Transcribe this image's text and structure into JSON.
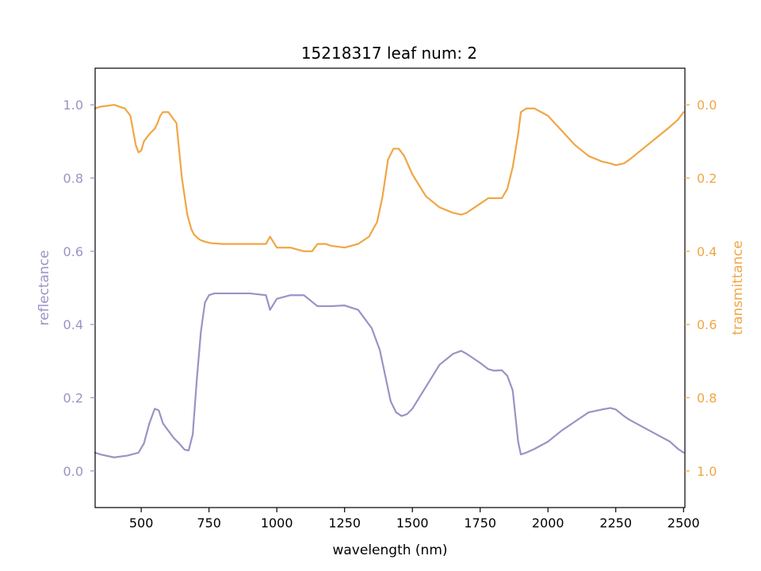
{
  "chart_data": {
    "type": "line",
    "title": "15218317 leaf num: 2",
    "xlabel": "wavelength (nm)",
    "ylabel_left": "reflectance",
    "ylabel_right": "transmittance",
    "xlim": [
      330,
      2505
    ],
    "ylim_left": [
      -0.1,
      1.1
    ],
    "ylim_right": [
      1.1,
      -0.1
    ],
    "right_axis_inverted": true,
    "x_ticks": [
      500,
      750,
      1000,
      1250,
      1500,
      1750,
      2000,
      2250,
      2500
    ],
    "x_tick_labels": [
      "500",
      "750",
      "1000",
      "1250",
      "1500",
      "1750",
      "2000",
      "2250",
      "2500"
    ],
    "y_left_ticks": [
      0.0,
      0.2,
      0.4,
      0.6,
      0.8,
      1.0
    ],
    "y_left_tick_labels": [
      "0.0",
      "0.2",
      "0.4",
      "0.6",
      "0.8",
      "1.0"
    ],
    "y_right_ticks": [
      0.0,
      0.2,
      0.4,
      0.6,
      0.8,
      1.0
    ],
    "y_right_tick_labels": [
      "0.0",
      "0.2",
      "0.4",
      "0.6",
      "0.8",
      "1.0"
    ],
    "grid": false,
    "legend": "none",
    "colors": {
      "reflectance": "#9894c5",
      "transmittance": "#f0a645",
      "axis": "#000000"
    },
    "series": [
      {
        "name": "reflectance",
        "axis": "left",
        "x": [
          330,
          350,
          400,
          450,
          490,
          510,
          530,
          550,
          565,
          580,
          600,
          620,
          640,
          660,
          675,
          690,
          705,
          720,
          735,
          750,
          770,
          800,
          900,
          960,
          975,
          1000,
          1050,
          1100,
          1150,
          1200,
          1250,
          1300,
          1350,
          1380,
          1400,
          1420,
          1440,
          1460,
          1480,
          1500,
          1550,
          1600,
          1650,
          1680,
          1700,
          1750,
          1780,
          1800,
          1830,
          1850,
          1870,
          1880,
          1890,
          1900,
          1920,
          1950,
          2000,
          2050,
          2100,
          2150,
          2200,
          2230,
          2250,
          2280,
          2300,
          2350,
          2400,
          2450,
          2480,
          2500
        ],
        "y": [
          0.05,
          0.045,
          0.037,
          0.042,
          0.05,
          0.075,
          0.13,
          0.17,
          0.165,
          0.13,
          0.11,
          0.09,
          0.075,
          0.058,
          0.056,
          0.1,
          0.25,
          0.38,
          0.46,
          0.48,
          0.485,
          0.485,
          0.485,
          0.48,
          0.44,
          0.47,
          0.48,
          0.48,
          0.45,
          0.45,
          0.452,
          0.44,
          0.39,
          0.33,
          0.26,
          0.19,
          0.16,
          0.15,
          0.155,
          0.17,
          0.23,
          0.29,
          0.32,
          0.328,
          0.32,
          0.295,
          0.278,
          0.274,
          0.275,
          0.26,
          0.22,
          0.15,
          0.08,
          0.045,
          0.05,
          0.06,
          0.08,
          0.11,
          0.135,
          0.16,
          0.168,
          0.172,
          0.168,
          0.15,
          0.14,
          0.12,
          0.1,
          0.08,
          0.06,
          0.05
        ]
      },
      {
        "name": "transmittance",
        "axis": "right",
        "x": [
          330,
          350,
          400,
          440,
          460,
          470,
          480,
          490,
          500,
          510,
          530,
          550,
          560,
          570,
          580,
          600,
          630,
          650,
          670,
          685,
          695,
          710,
          720,
          740,
          760,
          800,
          900,
          960,
          975,
          1000,
          1050,
          1100,
          1130,
          1150,
          1180,
          1200,
          1250,
          1300,
          1340,
          1370,
          1390,
          1410,
          1430,
          1450,
          1470,
          1500,
          1550,
          1600,
          1650,
          1680,
          1700,
          1750,
          1780,
          1800,
          1830,
          1850,
          1870,
          1890,
          1900,
          1920,
          1950,
          2000,
          2050,
          2100,
          2150,
          2200,
          2230,
          2250,
          2280,
          2300,
          2350,
          2400,
          2450,
          2480,
          2500
        ],
        "y": [
          0.01,
          0.005,
          0.0,
          0.01,
          0.03,
          0.07,
          0.11,
          0.13,
          0.125,
          0.1,
          0.08,
          0.065,
          0.05,
          0.03,
          0.02,
          0.02,
          0.05,
          0.2,
          0.3,
          0.34,
          0.355,
          0.365,
          0.37,
          0.375,
          0.378,
          0.38,
          0.38,
          0.38,
          0.36,
          0.39,
          0.39,
          0.4,
          0.4,
          0.38,
          0.38,
          0.385,
          0.39,
          0.38,
          0.36,
          0.32,
          0.25,
          0.15,
          0.12,
          0.12,
          0.14,
          0.19,
          0.25,
          0.28,
          0.295,
          0.3,
          0.295,
          0.27,
          0.255,
          0.255,
          0.255,
          0.23,
          0.17,
          0.08,
          0.02,
          0.01,
          0.01,
          0.03,
          0.07,
          0.11,
          0.14,
          0.155,
          0.16,
          0.165,
          0.16,
          0.15,
          0.12,
          0.09,
          0.06,
          0.04,
          0.02
        ]
      }
    ]
  }
}
